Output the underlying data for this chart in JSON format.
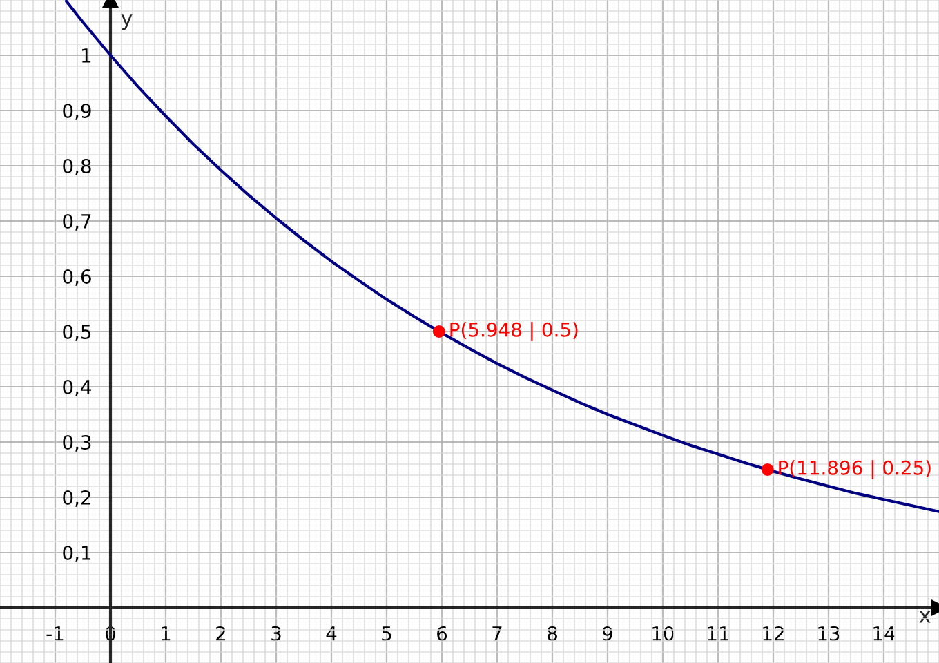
{
  "chart_data": {
    "type": "line",
    "xlabel": "x",
    "ylabel": "y",
    "xlim": [
      -2,
      15
    ],
    "ylim": [
      -0.1,
      1.1
    ],
    "xticks": [
      -1,
      {
        "value": 0,
        "label": "0"
      },
      1,
      2,
      3,
      4,
      5,
      6,
      7,
      8,
      9,
      10,
      11,
      12,
      13,
      14
    ],
    "yticks": [
      {
        "value": 0.1,
        "label": "0,1"
      },
      {
        "value": 0.2,
        "label": "0,2"
      },
      {
        "value": 0.3,
        "label": "0,3"
      },
      {
        "value": 0.4,
        "label": "0,4"
      },
      {
        "value": 0.5,
        "label": "0,5"
      },
      {
        "value": 0.6,
        "label": "0,6"
      },
      {
        "value": 0.7,
        "label": "0,7"
      },
      {
        "value": 0.8,
        "label": "0,8"
      },
      {
        "value": 0.9,
        "label": "0,9"
      },
      {
        "value": 1,
        "label": "1"
      }
    ],
    "grid": true,
    "series": [
      {
        "color": "#000080",
        "x": [
          -0.8,
          -0.5,
          0,
          0.5,
          1,
          1.5,
          2,
          2.5,
          3,
          3.5,
          4,
          4.5,
          5,
          5.5,
          6,
          6.5,
          7,
          7.5,
          8,
          8.5,
          9,
          9.5,
          10,
          10.5,
          11,
          11.5,
          12,
          12.5,
          13,
          13.5,
          14,
          14.5,
          15
        ],
        "values": [
          1.098,
          1.06,
          1.0,
          0.943,
          0.89,
          0.839,
          0.792,
          0.747,
          0.705,
          0.665,
          0.627,
          0.592,
          0.558,
          0.527,
          0.497,
          0.469,
          0.442,
          0.417,
          0.394,
          0.371,
          0.35,
          0.331,
          0.312,
          0.294,
          0.278,
          0.262,
          0.247,
          0.233,
          0.22,
          0.207,
          0.196,
          0.185,
          0.174
        ]
      },
      {
        "type": "scatter",
        "color": "#ff0000",
        "marker": "circle",
        "x": [
          5.948,
          11.896
        ],
        "values": [
          0.5,
          0.25
        ]
      }
    ],
    "annotations": [
      {
        "text": "P(5.948 | 0.5)",
        "x": 5.948,
        "y": 0.5
      },
      {
        "text": "P(11.896 | 0.25)",
        "x": 11.896,
        "y": 0.25
      }
    ]
  }
}
